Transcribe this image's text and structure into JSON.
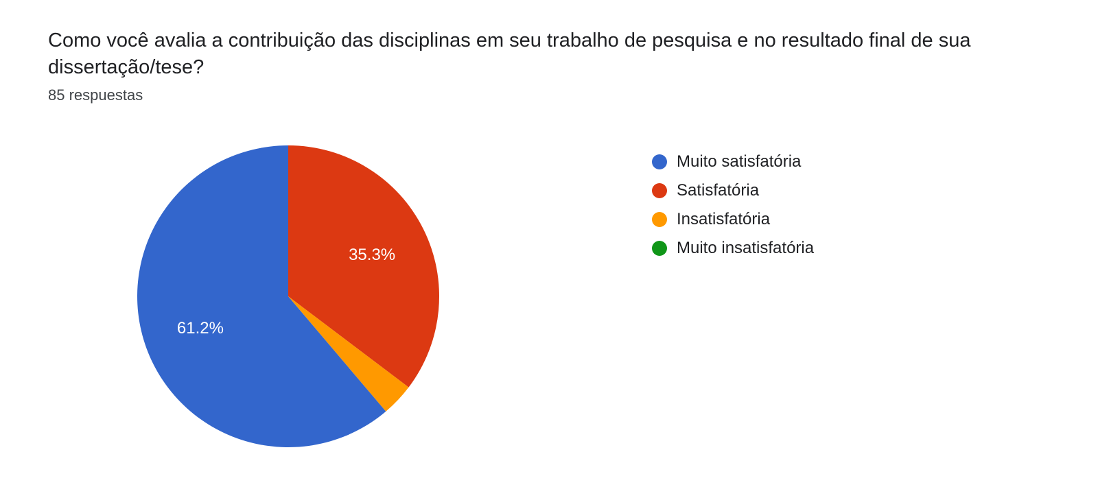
{
  "header": {
    "title": "Como você avalia a contribuição das disciplinas em seu trabalho de pesquisa e no resultado final de sua dissertação/tese?",
    "subtitle": "85 respuestas"
  },
  "chart": {
    "type": "pie",
    "radius": 220,
    "background_color": "#ffffff",
    "label_text_color": "#ffffff",
    "label_fontsize": 24,
    "title_color": "#202124",
    "title_fontsize": 29,
    "subtitle_color": "#414549",
    "subtitle_fontsize": 22,
    "slices": [
      {
        "label": "Muito satisfatória",
        "value": 61.2,
        "display": "61.2%",
        "color": "#3366cc",
        "show_label": true
      },
      {
        "label": "Satisfatória",
        "value": 35.3,
        "display": "35.3%",
        "color": "#dc3912",
        "show_label": true
      },
      {
        "label": "Insatisfatória",
        "value": 3.5,
        "display": "",
        "color": "#ff9900",
        "show_label": false
      },
      {
        "label": "Muito insatisfatória",
        "value": 0.0,
        "display": "",
        "color": "#109618",
        "show_label": false
      }
    ],
    "legend_position": "right",
    "legend_fontsize": 24,
    "legend_text_color": "#202124"
  }
}
